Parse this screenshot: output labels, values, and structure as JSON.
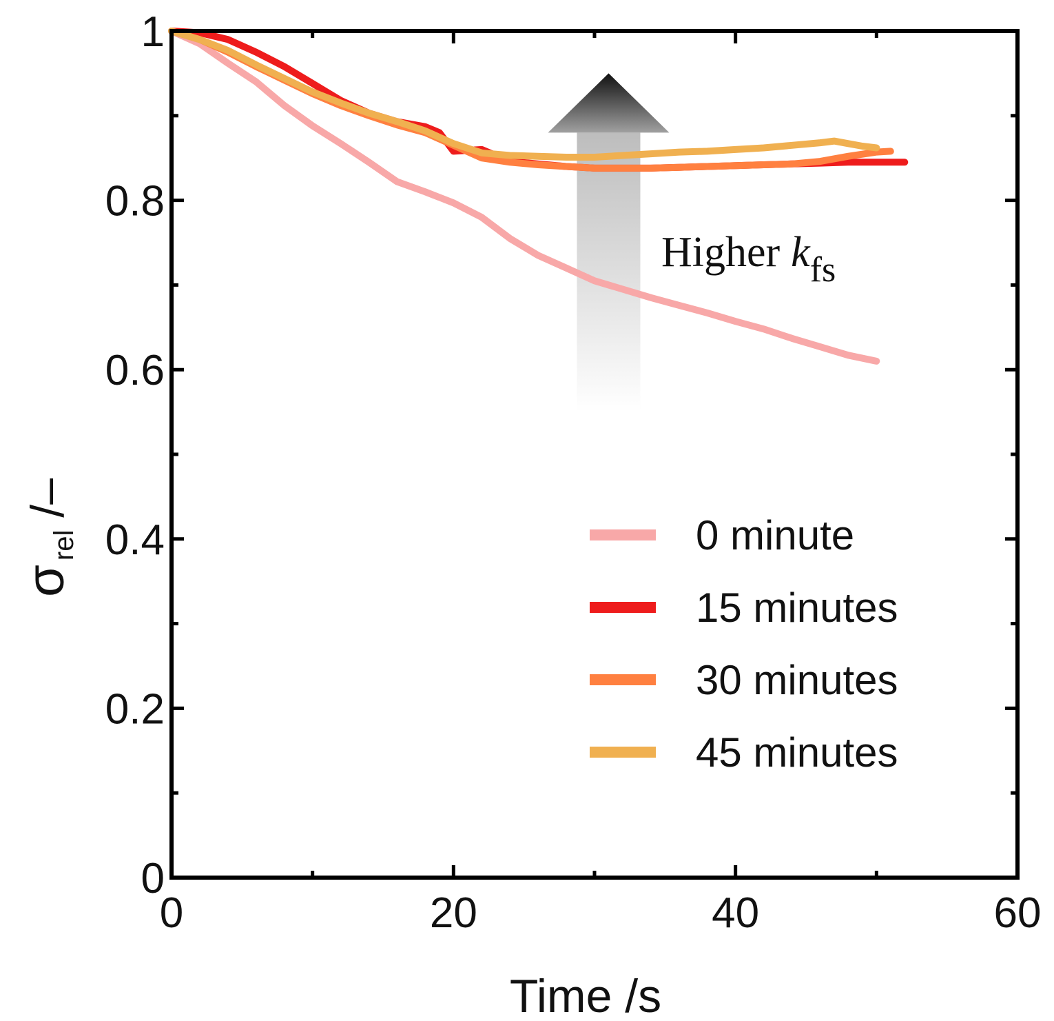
{
  "chart_data": {
    "type": "line",
    "title": "",
    "xlabel": "Time /s",
    "ylabel": {
      "symbol": "σ",
      "subscript": "rel",
      "unit": "/–"
    },
    "xlim": [
      0,
      60
    ],
    "ylim": [
      0,
      1
    ],
    "x_ticks": [
      "0",
      "20",
      "40",
      "60"
    ],
    "y_ticks": [
      "0",
      "0.2",
      "0.4",
      "0.6",
      "0.8",
      "1"
    ],
    "x_tick_values": [
      0,
      20,
      40,
      60
    ],
    "y_tick_values": [
      0,
      0.2,
      0.4,
      0.6,
      0.8,
      1
    ],
    "grid": false,
    "legend_position": "bottom-right",
    "annotation": {
      "text": "Higher",
      "symbol": "k",
      "subscript": "fs",
      "arrow_direction": "up",
      "arrow_x": 31,
      "arrow_from_y": 0.55,
      "arrow_to_y": 0.95
    },
    "series": [
      {
        "name": "0 minute",
        "color": "#f8a8a8",
        "x": [
          0,
          2,
          4,
          6,
          8,
          10,
          12,
          14,
          16,
          18,
          20,
          22,
          24,
          26,
          28,
          30,
          32,
          34,
          36,
          38,
          40,
          42,
          44,
          46,
          48,
          50
        ],
        "y": [
          1.0,
          0.985,
          0.962,
          0.94,
          0.912,
          0.888,
          0.867,
          0.845,
          0.822,
          0.81,
          0.797,
          0.78,
          0.755,
          0.735,
          0.72,
          0.705,
          0.695,
          0.685,
          0.676,
          0.667,
          0.657,
          0.648,
          0.637,
          0.627,
          0.617,
          0.61
        ]
      },
      {
        "name": "15 minutes",
        "color": "#ee1c1c",
        "x": [
          0,
          2,
          4,
          6,
          8,
          10,
          12,
          14,
          16,
          18,
          19,
          20,
          22,
          24,
          26,
          28,
          30,
          32,
          34,
          36,
          38,
          40,
          42,
          44,
          46,
          48,
          50,
          52
        ],
        "y": [
          1.0,
          0.998,
          0.99,
          0.975,
          0.958,
          0.938,
          0.918,
          0.903,
          0.893,
          0.887,
          0.88,
          0.858,
          0.86,
          0.846,
          0.843,
          0.84,
          0.838,
          0.838,
          0.838,
          0.839,
          0.84,
          0.841,
          0.842,
          0.843,
          0.844,
          0.845,
          0.845,
          0.845
        ]
      },
      {
        "name": "30 minutes",
        "color": "#ff8040",
        "x": [
          0,
          2,
          4,
          6,
          8,
          10,
          12,
          14,
          16,
          18,
          20,
          22,
          24,
          26,
          28,
          30,
          32,
          34,
          36,
          38,
          40,
          42,
          44,
          46,
          48,
          50,
          51
        ],
        "y": [
          1.0,
          0.99,
          0.975,
          0.958,
          0.942,
          0.926,
          0.912,
          0.9,
          0.889,
          0.88,
          0.865,
          0.85,
          0.845,
          0.842,
          0.84,
          0.838,
          0.838,
          0.838,
          0.839,
          0.84,
          0.841,
          0.842,
          0.843,
          0.846,
          0.852,
          0.857,
          0.858
        ]
      },
      {
        "name": "45 minutes",
        "color": "#f0b050",
        "x": [
          0,
          2,
          4,
          6,
          8,
          10,
          12,
          14,
          16,
          18,
          20,
          22,
          24,
          26,
          28,
          30,
          32,
          34,
          36,
          38,
          40,
          42,
          44,
          46,
          47,
          48,
          49,
          50
        ],
        "y": [
          1.0,
          0.99,
          0.977,
          0.96,
          0.944,
          0.928,
          0.915,
          0.903,
          0.893,
          0.882,
          0.867,
          0.856,
          0.853,
          0.852,
          0.851,
          0.851,
          0.853,
          0.855,
          0.857,
          0.858,
          0.86,
          0.862,
          0.865,
          0.868,
          0.87,
          0.867,
          0.864,
          0.862
        ]
      }
    ]
  }
}
